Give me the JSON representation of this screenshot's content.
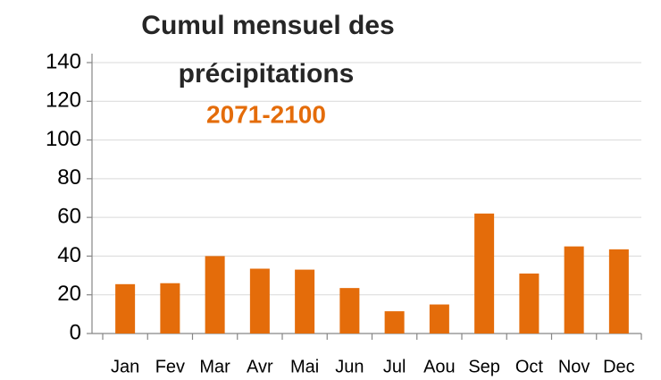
{
  "chart_data": {
    "type": "bar",
    "title": [
      "Cumul mensuel des",
      "précipitations"
    ],
    "subtitle": "2071-2100",
    "categories": [
      "Jan",
      "Fev",
      "Mar",
      "Avr",
      "Mai",
      "Jun",
      "Jul",
      "Aou",
      "Sep",
      "Oct",
      "Nov",
      "Dec"
    ],
    "values": [
      25.5,
      26,
      40,
      33.5,
      33,
      23.5,
      11.5,
      15,
      62,
      31,
      45,
      43.5
    ],
    "color": "#e46c0a",
    "ylim": [
      0,
      140
    ],
    "yticks": [
      0,
      20,
      40,
      60,
      80,
      100,
      120,
      140
    ],
    "grid": true
  }
}
